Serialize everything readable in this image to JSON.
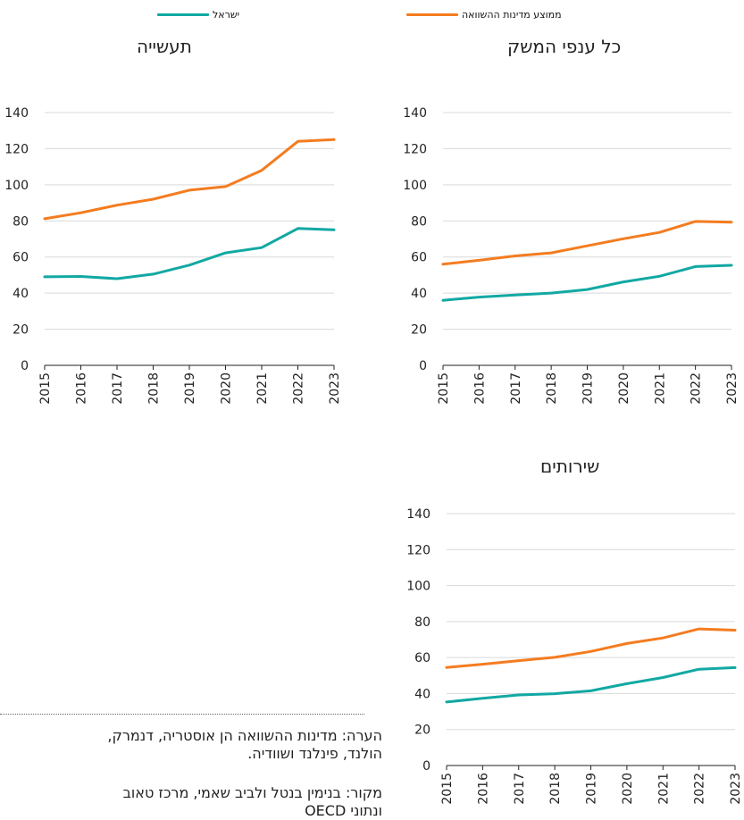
{
  "legend": {
    "israel": {
      "label": "ישראל",
      "color": "#12A8A3"
    },
    "comparison": {
      "label": "ממוצע מדינות ההשוואה",
      "color": "#F47C20"
    }
  },
  "note": {
    "line1": "הערה: מדינות ההשוואה הן אוסטריה, דנמרק,",
    "line2": "הולנד, פינלנד ושוודיה.",
    "line3": "מקור: בנימין בנטל ולביב שאמי, מרכז טאוב",
    "line4": "ונתוני OECD"
  },
  "chart_data": [
    {
      "id": "industry",
      "type": "line",
      "title": "תעשייה",
      "x": [
        "2015",
        "2016",
        "2017",
        "2018",
        "2019",
        "2020",
        "2021",
        "2022",
        "2023"
      ],
      "ylim": [
        0,
        140
      ],
      "yticks": [
        0,
        20,
        40,
        60,
        80,
        100,
        120,
        140
      ],
      "grid": true,
      "series": [
        {
          "name": "ישראל",
          "color": "#12A8A3",
          "values": [
            49,
            49.2,
            48,
            50.5,
            55.5,
            62.3,
            65.2,
            75.8,
            75.1
          ]
        },
        {
          "name": "ממוצע מדינות ההשוואה",
          "color": "#F47C20",
          "values": [
            81.2,
            84.5,
            88.7,
            92,
            97,
            99,
            108,
            124,
            125
          ]
        }
      ]
    },
    {
      "id": "all-sectors",
      "type": "line",
      "title": "כל ענפי המשק",
      "x": [
        "2015",
        "2016",
        "2017",
        "2018",
        "2019",
        "2020",
        "2021",
        "2022",
        "2023"
      ],
      "ylim": [
        0,
        140
      ],
      "yticks": [
        0,
        20,
        40,
        60,
        80,
        100,
        120,
        140
      ],
      "grid": true,
      "series": [
        {
          "name": "ישראל",
          "color": "#12A8A3",
          "values": [
            36,
            37.8,
            39,
            40,
            42,
            46.2,
            49.3,
            54.7,
            55.4
          ]
        },
        {
          "name": "ממוצע מדינות ההשוואה",
          "color": "#F47C20",
          "values": [
            56,
            58.2,
            60.6,
            62.3,
            66.2,
            70.1,
            73.6,
            79.7,
            79.3
          ]
        }
      ]
    },
    {
      "id": "services",
      "type": "line",
      "title": "שירותים",
      "x": [
        "2015",
        "2016",
        "2017",
        "2018",
        "2019",
        "2020",
        "2021",
        "2022",
        "2023"
      ],
      "ylim": [
        0,
        140
      ],
      "yticks": [
        0,
        20,
        40,
        60,
        80,
        100,
        120,
        140
      ],
      "grid": true,
      "series": [
        {
          "name": "ישראל",
          "color": "#12A8A3",
          "values": [
            35.3,
            37.4,
            39.2,
            39.9,
            41.5,
            45.5,
            48.9,
            53.5,
            54.4
          ]
        },
        {
          "name": "ממוצע מדינות ההשוואה",
          "color": "#F47C20",
          "values": [
            54.5,
            56.3,
            58.3,
            60.1,
            63.4,
            67.8,
            70.9,
            75.9,
            75.2
          ]
        }
      ]
    }
  ]
}
